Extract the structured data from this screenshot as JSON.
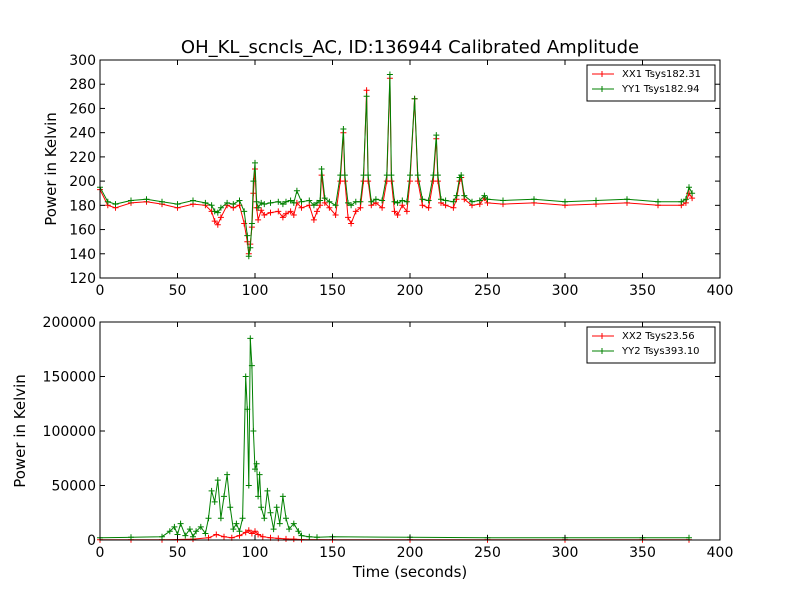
{
  "figure": {
    "title": "OH_KL_scncls_AC, ID:136944 Calibrated Amplitude"
  },
  "colors": {
    "xx": "#ff0000",
    "yy": "#008000",
    "axis": "#000000",
    "background": "#ffffff"
  },
  "chart_data": [
    {
      "type": "line",
      "title": "OH_KL_scncls_AC, ID:136944 Calibrated Amplitude",
      "xlabel": "",
      "ylabel": "Power in Kelvin",
      "xlim": [
        0,
        400
      ],
      "ylim": [
        120,
        300
      ],
      "xticks": [
        0,
        50,
        100,
        150,
        200,
        250,
        300,
        350,
        400
      ],
      "yticks": [
        120,
        140,
        160,
        180,
        200,
        220,
        240,
        260,
        280,
        300
      ],
      "grid": false,
      "legend_position": "top-right",
      "marker": "+",
      "series": [
        {
          "name": "XX1 Tsys182.31",
          "color": "#ff0000",
          "x": [
            0,
            5,
            10,
            20,
            30,
            40,
            50,
            60,
            68,
            72,
            74,
            76,
            78,
            82,
            86,
            90,
            93,
            95,
            96,
            97,
            98,
            99,
            100,
            101,
            102,
            104,
            106,
            110,
            115,
            118,
            120,
            123,
            125,
            127,
            130,
            135,
            138,
            140,
            142,
            143,
            145,
            148,
            152,
            155,
            157,
            158,
            160,
            162,
            165,
            168,
            170,
            172,
            173,
            175,
            178,
            182,
            185,
            187,
            188,
            190,
            192,
            195,
            198,
            200,
            203,
            205,
            208,
            212,
            215,
            217,
            218,
            220,
            223,
            228,
            230,
            232,
            233,
            235,
            240,
            245,
            248,
            250,
            260,
            280,
            300,
            320,
            340,
            360,
            375,
            378,
            380,
            382
          ],
          "y": [
            193,
            180,
            178,
            182,
            183,
            181,
            178,
            181,
            180,
            175,
            167,
            164,
            170,
            180,
            178,
            180,
            165,
            150,
            140,
            148,
            162,
            190,
            210,
            178,
            168,
            176,
            172,
            174,
            175,
            170,
            173,
            175,
            172,
            182,
            178,
            180,
            168,
            175,
            180,
            205,
            182,
            178,
            172,
            200,
            240,
            200,
            170,
            165,
            175,
            178,
            200,
            275,
            200,
            180,
            182,
            178,
            200,
            285,
            200,
            175,
            172,
            180,
            175,
            200,
            268,
            200,
            180,
            178,
            200,
            235,
            200,
            182,
            180,
            178,
            185,
            200,
            203,
            185,
            180,
            181,
            186,
            182,
            181,
            182,
            180,
            181,
            182,
            180,
            180,
            182,
            190,
            186
          ]
        },
        {
          "name": "YY1 Tsys182.94",
          "color": "#008000",
          "x": [
            0,
            5,
            10,
            20,
            30,
            40,
            50,
            60,
            68,
            72,
            74,
            76,
            78,
            82,
            86,
            90,
            93,
            95,
            96,
            97,
            98,
            99,
            100,
            101,
            102,
            104,
            106,
            110,
            115,
            118,
            120,
            123,
            125,
            127,
            130,
            135,
            138,
            140,
            142,
            143,
            145,
            148,
            152,
            155,
            157,
            158,
            160,
            162,
            165,
            168,
            170,
            172,
            173,
            175,
            178,
            182,
            185,
            187,
            188,
            190,
            192,
            195,
            198,
            200,
            203,
            205,
            208,
            212,
            215,
            217,
            218,
            220,
            223,
            228,
            230,
            232,
            233,
            235,
            240,
            245,
            248,
            250,
            260,
            280,
            300,
            320,
            340,
            360,
            375,
            378,
            380,
            382
          ],
          "y": [
            195,
            183,
            181,
            184,
            185,
            183,
            181,
            184,
            182,
            180,
            175,
            174,
            178,
            182,
            181,
            184,
            175,
            155,
            138,
            145,
            165,
            200,
            215,
            183,
            178,
            182,
            181,
            182,
            183,
            181,
            183,
            184,
            182,
            192,
            183,
            184,
            180,
            182,
            184,
            210,
            186,
            183,
            180,
            205,
            243,
            205,
            182,
            180,
            183,
            183,
            205,
            270,
            205,
            183,
            185,
            184,
            205,
            288,
            205,
            183,
            182,
            184,
            183,
            205,
            268,
            205,
            185,
            184,
            205,
            238,
            205,
            185,
            184,
            183,
            188,
            203,
            205,
            188,
            183,
            184,
            188,
            185,
            184,
            185,
            183,
            184,
            185,
            183,
            183,
            185,
            195,
            190
          ]
        }
      ]
    },
    {
      "type": "line",
      "title": "",
      "xlabel": "Time (seconds)",
      "ylabel": "Power in Kelvin",
      "xlim": [
        0,
        400
      ],
      "ylim": [
        0,
        200000
      ],
      "xticks": [
        0,
        50,
        100,
        150,
        200,
        250,
        300,
        350,
        400
      ],
      "yticks": [
        0,
        50000,
        100000,
        150000,
        200000
      ],
      "grid": false,
      "legend_position": "top-right",
      "marker": "+",
      "series": [
        {
          "name": "XX2 Tsys23.56",
          "color": "#ff0000",
          "x": [
            0,
            20,
            40,
            50,
            60,
            70,
            75,
            80,
            85,
            90,
            94,
            96,
            98,
            100,
            102,
            105,
            110,
            115,
            120,
            125,
            130,
            150,
            200,
            250,
            300,
            350,
            380
          ],
          "y": [
            200,
            200,
            300,
            500,
            800,
            2000,
            5000,
            3000,
            2000,
            4000,
            7000,
            9000,
            6000,
            8000,
            5000,
            3000,
            2000,
            1500,
            1000,
            800,
            500,
            300,
            300,
            300,
            300,
            300,
            300
          ]
        },
        {
          "name": "YY2 Tsys393.10",
          "color": "#008000",
          "x": [
            0,
            20,
            40,
            45,
            48,
            50,
            52,
            55,
            58,
            60,
            62,
            65,
            68,
            70,
            72,
            74,
            76,
            78,
            80,
            82,
            84,
            86,
            88,
            90,
            92,
            94,
            95,
            96,
            97,
            98,
            99,
            100,
            101,
            102,
            103,
            104,
            106,
            108,
            110,
            112,
            114,
            116,
            118,
            120,
            122,
            125,
            128,
            130,
            135,
            140,
            150,
            200,
            250,
            300,
            350,
            380
          ],
          "y": [
            2000,
            2500,
            3000,
            8000,
            12000,
            5000,
            15000,
            4000,
            10000,
            3000,
            8000,
            12000,
            6000,
            20000,
            45000,
            35000,
            55000,
            20000,
            40000,
            60000,
            30000,
            10000,
            15000,
            8000,
            20000,
            150000,
            120000,
            50000,
            185000,
            160000,
            100000,
            65000,
            70000,
            40000,
            60000,
            30000,
            20000,
            45000,
            25000,
            10000,
            30000,
            15000,
            40000,
            20000,
            10000,
            15000,
            8000,
            4000,
            3000,
            2500,
            3000,
            2500,
            2000,
            2000,
            2000,
            2000
          ]
        }
      ]
    }
  ]
}
